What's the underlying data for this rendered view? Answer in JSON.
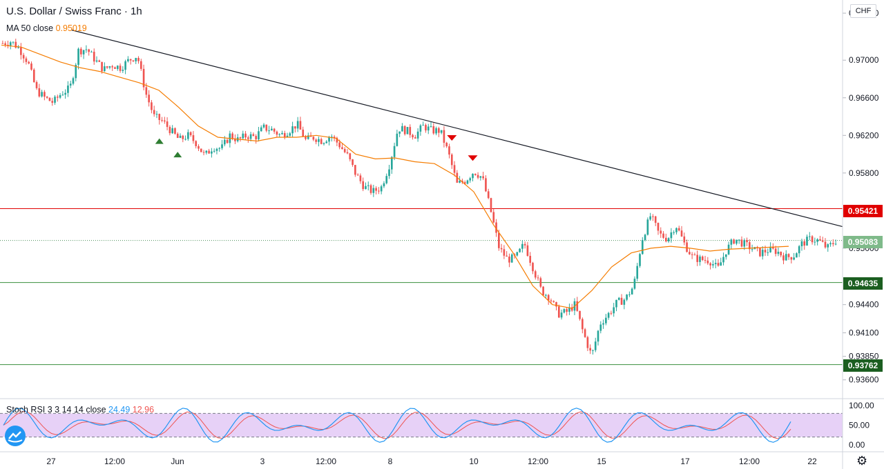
{
  "header": {
    "title": "U.S. Dollar / Swiss Franc · 1h",
    "ma_label": "MA 50 close",
    "ma_value": "0.95019",
    "currency": "CHF"
  },
  "colors": {
    "up": "#26a69a",
    "down": "#ef5350",
    "ma": "#f57c00",
    "resistance": "#e00000",
    "support": "#388e3c",
    "stoch_k": "#2196f3",
    "stoch_d": "#ef5350",
    "stoch_band": "#e1c6f5"
  },
  "price_tags": [
    {
      "label": "0.95421",
      "color": "#e00000"
    },
    {
      "label": "0.95083",
      "color": "#7fba8a"
    },
    {
      "label": "0.94635",
      "color": "#1b5e20"
    },
    {
      "label": "0.93762",
      "color": "#1b5e20"
    }
  ],
  "stoch": {
    "label": "Stoch RSI 3 3 14 14 close",
    "k": "24.49",
    "d": "12.96"
  },
  "chart_data": {
    "type": "candlestick",
    "symbol": "U.S. Dollar / Swiss Franc",
    "timeframe": "1h",
    "y_axis": {
      "range": [
        0.934,
        0.9764
      ],
      "ticks": [
        "0.97500",
        "0.97000",
        "0.96600",
        "0.96200",
        "0.95800",
        "0.95000",
        "0.94400",
        "0.94100",
        "0.93850",
        "0.93600"
      ],
      "tick_values": [
        0.975,
        0.97,
        0.966,
        0.962,
        0.958,
        0.95,
        0.944,
        0.941,
        0.9385,
        0.936
      ]
    },
    "x_axis": {
      "ticks": [
        "27",
        "12:00",
        "Jun",
        "3",
        "12:00",
        "8",
        "10",
        "12:00",
        "15",
        "17",
        "12:00",
        "22"
      ]
    },
    "price_path": [
      0.9718,
      0.972,
      0.9712,
      0.9698,
      0.9668,
      0.966,
      0.9655,
      0.9665,
      0.967,
      0.971,
      0.9712,
      0.97,
      0.969,
      0.9695,
      0.9692,
      0.97,
      0.9705,
      0.9665,
      0.964,
      0.9635,
      0.9625,
      0.9615,
      0.962,
      0.9612,
      0.9598,
      0.9608,
      0.9606,
      0.962,
      0.9615,
      0.962,
      0.9618,
      0.9628,
      0.9626,
      0.962,
      0.9625,
      0.9632,
      0.9615,
      0.9618,
      0.9614,
      0.962,
      0.961,
      0.9598,
      0.9578,
      0.9565,
      0.956,
      0.9565,
      0.959,
      0.9628,
      0.9625,
      0.962,
      0.963,
      0.9625,
      0.9625,
      0.96,
      0.9568,
      0.9572,
      0.9582,
      0.9575,
      0.954,
      0.95,
      0.9488,
      0.949,
      0.9505,
      0.948,
      0.9455,
      0.9448,
      0.943,
      0.9432,
      0.944,
      0.941,
      0.9385,
      0.942,
      0.943,
      0.9442,
      0.9446,
      0.946,
      0.951,
      0.9535,
      0.9515,
      0.951,
      0.9525,
      0.9505,
      0.949,
      0.9488,
      0.9487,
      0.9478,
      0.9498,
      0.951,
      0.9505,
      0.95,
      0.9495,
      0.9498,
      0.9497,
      0.949,
      0.9492,
      0.9505,
      0.951,
      0.9508,
      0.95,
      0.9508
    ],
    "moving_average": {
      "name": "MA 50 close",
      "path": [
        0.9716,
        0.9714,
        0.9706,
        0.9698,
        0.9692,
        0.9688,
        0.9682,
        0.9676,
        0.9668,
        0.965,
        0.963,
        0.9618,
        0.9616,
        0.9614,
        0.9618,
        0.9618,
        0.962,
        0.9617,
        0.96,
        0.9595,
        0.9596,
        0.9592,
        0.959,
        0.9578,
        0.956,
        0.9525,
        0.9495,
        0.946,
        0.944,
        0.9436,
        0.9455,
        0.948,
        0.9495,
        0.95,
        0.9502,
        0.95,
        0.9497,
        0.9499,
        0.95,
        0.9501,
        0.9502
      ]
    },
    "trendline": {
      "from": 0.9732,
      "to": 0.9523
    },
    "levels": [
      {
        "value": 0.95421,
        "role": "resistance"
      },
      {
        "value": 0.95083,
        "role": "last_price"
      },
      {
        "value": 0.94635,
        "role": "support"
      },
      {
        "value": 0.93762,
        "role": "support"
      }
    ],
    "markers": [
      {
        "type": "up",
        "index": 60
      },
      {
        "type": "up",
        "index": 67
      },
      {
        "type": "down",
        "index": 172
      },
      {
        "type": "down",
        "index": 180
      }
    ],
    "stoch_rsi": {
      "name": "Stoch RSI 3 3 14 14 close",
      "y_ticks": [
        "100.00",
        "50.00",
        "0.00"
      ],
      "band": [
        20,
        80
      ],
      "k_last": 24.49,
      "d_last": 12.96
    }
  }
}
